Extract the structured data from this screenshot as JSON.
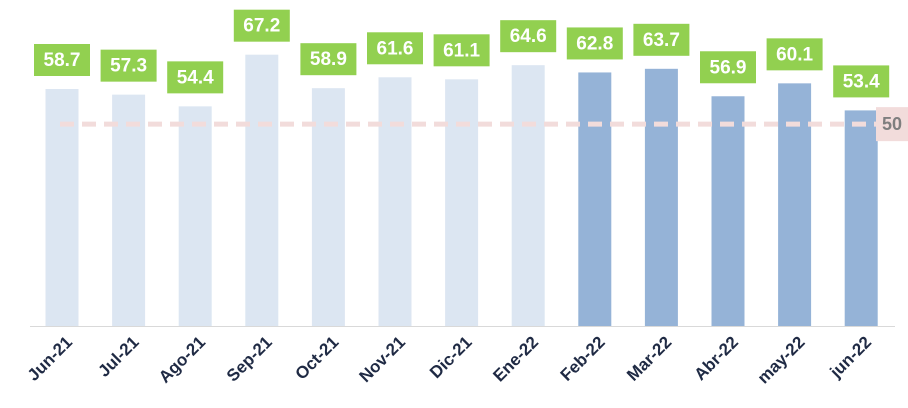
{
  "chart_data": {
    "type": "bar",
    "categories": [
      "Jun-21",
      "Jul-21",
      "Ago-21",
      "Sep-21",
      "Oct-21",
      "Nov-21",
      "Dic-21",
      "Ene-22",
      "Feb-22",
      "Mar-22",
      "Abr-22",
      "may-22",
      "jun-22"
    ],
    "values": [
      58.7,
      57.3,
      54.4,
      67.2,
      58.9,
      61.6,
      61.1,
      64.6,
      62.8,
      63.7,
      56.9,
      60.1,
      53.4
    ],
    "colors": [
      "#dce6f2",
      "#dce6f2",
      "#dce6f2",
      "#dce6f2",
      "#dce6f2",
      "#dce6f2",
      "#dce6f2",
      "#dce6f2",
      "#95b3d7",
      "#95b3d7",
      "#95b3d7",
      "#95b3d7",
      "#95b3d7"
    ],
    "label_color": "#92d050",
    "reference_value": 50,
    "reference_color": "#f2dcdb",
    "ylim": [
      0,
      80
    ]
  }
}
